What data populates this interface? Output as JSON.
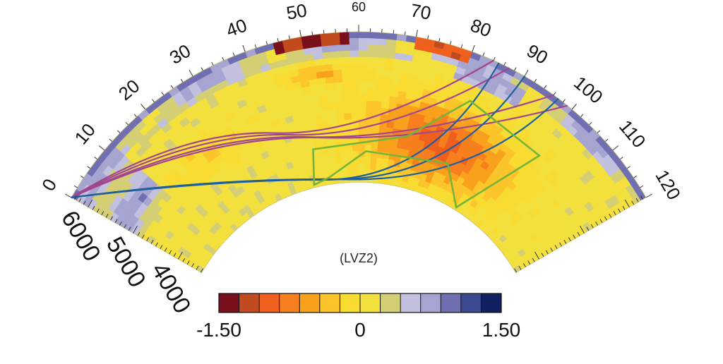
{
  "figure": {
    "angle_labels": [
      "0",
      "10",
      "20",
      "30",
      "40",
      "50",
      "60",
      "70",
      "80",
      "90",
      "100",
      "110",
      "120"
    ],
    "radius_labels": [
      "6000",
      "5000",
      "4000"
    ],
    "annotation": "(LVZ2)",
    "colorbar": {
      "labels": [
        "-1.50",
        "0",
        "1.50"
      ],
      "colors": [
        "#7a0f1c",
        "#c24a1f",
        "#ef5f1d",
        "#f77f1d",
        "#f9a11c",
        "#fbc52b",
        "#f8dc32",
        "#f4e03c",
        "#d4cf74",
        "#c2c0df",
        "#a6a4d0",
        "#6f6fb1",
        "#3b4a91",
        "#0f1f60"
      ]
    },
    "section": {
      "angle_min_deg": 0,
      "angle_max_deg": 120,
      "radius_outer_km": 6371,
      "radius_inner_km": 3480
    },
    "ray_colors": {
      "purple": "#a1468f",
      "blue": "#1f5f9e",
      "green": "#78b339"
    }
  }
}
